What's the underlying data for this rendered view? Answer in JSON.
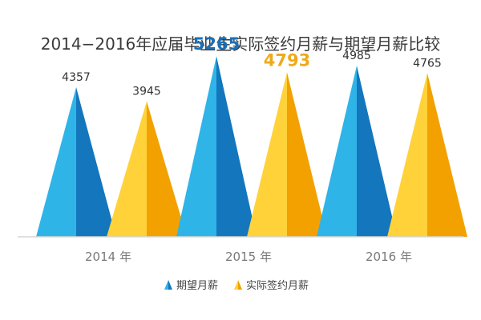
{
  "chart_data": {
    "type": "bar",
    "title": "2014−2016年应届毕业生实际签约月薪与期望月薪比较",
    "categories": [
      "2014 年",
      "2015 年",
      "2016 年"
    ],
    "series": [
      {
        "name": "期望月薪",
        "values": [
          4357,
          5265,
          4985
        ]
      },
      {
        "name": "实际签约月薪",
        "values": [
          3945,
          4793,
          4765
        ]
      }
    ],
    "highlight_category_index": 1,
    "legend_position": "bottom-center",
    "grid": false,
    "ylim": [
      0,
      5500
    ],
    "colors": {
      "expected_light": "#2fb4e8",
      "expected_dark": "#1476bc",
      "actual_light": "#ffd23a",
      "actual_dark": "#f2a100",
      "baseline": "#d6d6d6",
      "highlight_expected": "#1c6fb5",
      "highlight_actual": "#efaa1a"
    }
  }
}
